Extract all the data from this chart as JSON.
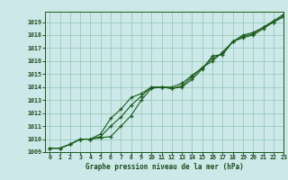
{
  "title": "Graphe pression niveau de la mer (hPa)",
  "bg_color": "#cce8e8",
  "grid_color": "#99ccbb",
  "line_color": "#1a5c1a",
  "marker_color": "#1a5c1a",
  "xlim": [
    -0.5,
    23
  ],
  "ylim": [
    1009,
    1019.8
  ],
  "xticks": [
    0,
    1,
    2,
    3,
    4,
    5,
    6,
    7,
    8,
    9,
    10,
    11,
    12,
    13,
    14,
    15,
    16,
    17,
    18,
    19,
    20,
    21,
    22,
    23
  ],
  "yticks": [
    1009,
    1010,
    1011,
    1012,
    1013,
    1014,
    1015,
    1016,
    1017,
    1018,
    1019
  ],
  "series": [
    [
      1009.3,
      1009.3,
      1009.6,
      1010.0,
      1010.0,
      1010.1,
      1010.2,
      1011.0,
      1011.8,
      1013.0,
      1013.9,
      1014.0,
      1013.9,
      1014.0,
      1014.6,
      1015.4,
      1016.4,
      1016.5,
      1017.5,
      1017.8,
      1018.0,
      1018.5,
      1019.0,
      1019.4
    ],
    [
      1009.3,
      1009.3,
      1009.6,
      1010.0,
      1010.0,
      1010.4,
      1011.6,
      1012.3,
      1013.2,
      1013.5,
      1014.0,
      1014.0,
      1014.0,
      1014.3,
      1014.9,
      1015.5,
      1016.0,
      1016.7,
      1017.5,
      1018.0,
      1018.2,
      1018.6,
      1019.1,
      1019.6
    ],
    [
      1009.3,
      1009.3,
      1009.6,
      1010.0,
      1010.0,
      1010.2,
      1011.0,
      1011.7,
      1012.6,
      1013.3,
      1014.0,
      1014.0,
      1013.9,
      1014.1,
      1014.8,
      1015.5,
      1016.2,
      1016.6,
      1017.5,
      1017.9,
      1018.1,
      1018.6,
      1019.0,
      1019.5
    ]
  ]
}
